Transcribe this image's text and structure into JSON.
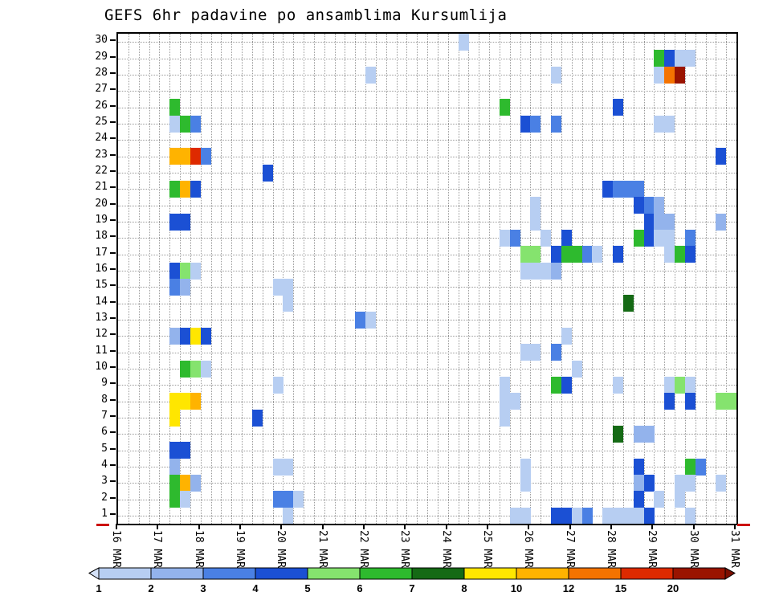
{
  "title": "GEFS 6hr padavine po ansamblima Kursumlija",
  "chart_data": {
    "type": "heatmap",
    "title": "GEFS 6hr padavine po ansamblima Kursumlija",
    "x_axis": {
      "tick_labels": [
        "16 MAR",
        "17 MAR",
        "18 MAR",
        "19 MAR",
        "20 MAR",
        "21 MAR",
        "22 MAR",
        "23 MAR",
        "24 MAR",
        "25 MAR",
        "26 MAR",
        "27 MAR",
        "28 MAR",
        "29 MAR",
        "30 MAR",
        "31 MAR"
      ],
      "steps_per_day": 4,
      "total_steps": 60
    },
    "y_axis": {
      "tick_labels": [
        "1",
        "2",
        "3",
        "4",
        "5",
        "6",
        "7",
        "8",
        "9",
        "10",
        "11",
        "12",
        "13",
        "14",
        "15",
        "16",
        "17",
        "18",
        "19",
        "20",
        "21",
        "22",
        "23",
        "24",
        "25",
        "26",
        "27",
        "28",
        "29",
        "30"
      ],
      "min": 1,
      "max": 30
    },
    "levels": [
      1,
      2,
      3,
      4,
      5,
      6,
      7,
      8,
      10,
      12,
      15,
      20
    ],
    "palette": {
      "1": "#b7cef2",
      "2": "#93b3ec",
      "3": "#4a80e4",
      "4": "#1b50d4",
      "5": "#85e36e",
      "6": "#2eba2e",
      "7": "#156a15",
      "8": "#ffe600",
      "10": "#ffb300",
      "12": "#f47300",
      "15": "#de2a00",
      "20": "#9a1400"
    },
    "colorbar": {
      "boundary_labels": [
        "1",
        "2",
        "3",
        "4",
        "5",
        "6",
        "7",
        "8",
        "10",
        "12",
        "15",
        "20"
      ],
      "segment_colors": [
        "#b7cef2",
        "#93b3ec",
        "#4a80e4",
        "#1b50d4",
        "#85e36e",
        "#2eba2e",
        "#156a15",
        "#ffe600",
        "#ffb300",
        "#f47300",
        "#de2a00",
        "#9a1400"
      ],
      "left_arrow_color": "#d4e1f8",
      "right_arrow_color": "#7c0e00"
    },
    "cells": [
      {
        "row": 30,
        "step": 33,
        "value": 1
      },
      {
        "row": 29,
        "step": 52,
        "value": 6
      },
      {
        "row": 29,
        "step": 53,
        "value": 4
      },
      {
        "row": 29,
        "step": 54,
        "value": 1
      },
      {
        "row": 29,
        "step": 55,
        "value": 1
      },
      {
        "row": 28,
        "step": 24,
        "value": 1
      },
      {
        "row": 28,
        "step": 42,
        "value": 1
      },
      {
        "row": 28,
        "step": 52,
        "value": 1
      },
      {
        "row": 28,
        "step": 53,
        "value": 12
      },
      {
        "row": 28,
        "step": 54,
        "value": 20
      },
      {
        "row": 26,
        "step": 5,
        "value": 6
      },
      {
        "row": 26,
        "step": 37,
        "value": 6
      },
      {
        "row": 26,
        "step": 48,
        "value": 4
      },
      {
        "row": 25,
        "step": 5,
        "value": 1
      },
      {
        "row": 25,
        "step": 6,
        "value": 6
      },
      {
        "row": 25,
        "step": 7,
        "value": 3
      },
      {
        "row": 25,
        "step": 39,
        "value": 4
      },
      {
        "row": 25,
        "step": 40,
        "value": 3
      },
      {
        "row": 25,
        "step": 42,
        "value": 3
      },
      {
        "row": 25,
        "step": 52,
        "value": 1
      },
      {
        "row": 25,
        "step": 53,
        "value": 1
      },
      {
        "row": 23,
        "step": 5,
        "value": 10
      },
      {
        "row": 23,
        "step": 6,
        "value": 10
      },
      {
        "row": 23,
        "step": 7,
        "value": 15
      },
      {
        "row": 23,
        "step": 8,
        "value": 3
      },
      {
        "row": 23,
        "step": 58,
        "value": 4
      },
      {
        "row": 22,
        "step": 14,
        "value": 4
      },
      {
        "row": 21,
        "step": 5,
        "value": 6
      },
      {
        "row": 21,
        "step": 6,
        "value": 10
      },
      {
        "row": 21,
        "step": 7,
        "value": 4
      },
      {
        "row": 21,
        "step": 47,
        "value": 4
      },
      {
        "row": 21,
        "step": 48,
        "value": 3
      },
      {
        "row": 21,
        "step": 49,
        "value": 3
      },
      {
        "row": 21,
        "step": 50,
        "value": 3
      },
      {
        "row": 20,
        "step": 40,
        "value": 1
      },
      {
        "row": 20,
        "step": 50,
        "value": 4
      },
      {
        "row": 20,
        "step": 51,
        "value": 3
      },
      {
        "row": 20,
        "step": 52,
        "value": 2
      },
      {
        "row": 19,
        "step": 5,
        "value": 4
      },
      {
        "row": 19,
        "step": 6,
        "value": 4
      },
      {
        "row": 19,
        "step": 40,
        "value": 1
      },
      {
        "row": 19,
        "step": 51,
        "value": 4
      },
      {
        "row": 19,
        "step": 52,
        "value": 2
      },
      {
        "row": 19,
        "step": 53,
        "value": 2
      },
      {
        "row": 19,
        "step": 58,
        "value": 2
      },
      {
        "row": 18,
        "step": 37,
        "value": 1
      },
      {
        "row": 18,
        "step": 38,
        "value": 3
      },
      {
        "row": 18,
        "step": 41,
        "value": 1
      },
      {
        "row": 18,
        "step": 43,
        "value": 4
      },
      {
        "row": 18,
        "step": 50,
        "value": 6
      },
      {
        "row": 18,
        "step": 51,
        "value": 4
      },
      {
        "row": 18,
        "step": 52,
        "value": 1
      },
      {
        "row": 18,
        "step": 53,
        "value": 1
      },
      {
        "row": 18,
        "step": 55,
        "value": 3
      },
      {
        "row": 17,
        "step": 39,
        "value": 5
      },
      {
        "row": 17,
        "step": 40,
        "value": 5
      },
      {
        "row": 17,
        "step": 42,
        "value": 4
      },
      {
        "row": 17,
        "step": 43,
        "value": 6
      },
      {
        "row": 17,
        "step": 44,
        "value": 6
      },
      {
        "row": 17,
        "step": 45,
        "value": 3
      },
      {
        "row": 17,
        "step": 46,
        "value": 1
      },
      {
        "row": 17,
        "step": 48,
        "value": 4
      },
      {
        "row": 17,
        "step": 53,
        "value": 1
      },
      {
        "row": 17,
        "step": 54,
        "value": 6
      },
      {
        "row": 17,
        "step": 55,
        "value": 4
      },
      {
        "row": 16,
        "step": 5,
        "value": 4
      },
      {
        "row": 16,
        "step": 6,
        "value": 5
      },
      {
        "row": 16,
        "step": 7,
        "value": 1
      },
      {
        "row": 16,
        "step": 39,
        "value": 1
      },
      {
        "row": 16,
        "step": 40,
        "value": 1
      },
      {
        "row": 16,
        "step": 41,
        "value": 1
      },
      {
        "row": 16,
        "step": 42,
        "value": 2
      },
      {
        "row": 15,
        "step": 5,
        "value": 3
      },
      {
        "row": 15,
        "step": 6,
        "value": 2
      },
      {
        "row": 15,
        "step": 15,
        "value": 1
      },
      {
        "row": 15,
        "step": 16,
        "value": 1
      },
      {
        "row": 14,
        "step": 16,
        "value": 1
      },
      {
        "row": 14,
        "step": 49,
        "value": 7
      },
      {
        "row": 13,
        "step": 23,
        "value": 3
      },
      {
        "row": 13,
        "step": 24,
        "value": 1
      },
      {
        "row": 12,
        "step": 5,
        "value": 2
      },
      {
        "row": 12,
        "step": 6,
        "value": 4
      },
      {
        "row": 12,
        "step": 7,
        "value": 8
      },
      {
        "row": 12,
        "step": 8,
        "value": 4
      },
      {
        "row": 12,
        "step": 43,
        "value": 1
      },
      {
        "row": 11,
        "step": 39,
        "value": 1
      },
      {
        "row": 11,
        "step": 40,
        "value": 1
      },
      {
        "row": 11,
        "step": 42,
        "value": 3
      },
      {
        "row": 10,
        "step": 6,
        "value": 6
      },
      {
        "row": 10,
        "step": 7,
        "value": 5
      },
      {
        "row": 10,
        "step": 8,
        "value": 1
      },
      {
        "row": 10,
        "step": 44,
        "value": 1
      },
      {
        "row": 9,
        "step": 15,
        "value": 1
      },
      {
        "row": 9,
        "step": 37,
        "value": 1
      },
      {
        "row": 9,
        "step": 42,
        "value": 6
      },
      {
        "row": 9,
        "step": 43,
        "value": 4
      },
      {
        "row": 9,
        "step": 48,
        "value": 1
      },
      {
        "row": 9,
        "step": 53,
        "value": 1
      },
      {
        "row": 9,
        "step": 54,
        "value": 5
      },
      {
        "row": 9,
        "step": 55,
        "value": 1
      },
      {
        "row": 8,
        "step": 5,
        "value": 8
      },
      {
        "row": 8,
        "step": 6,
        "value": 8
      },
      {
        "row": 8,
        "step": 7,
        "value": 10
      },
      {
        "row": 8,
        "step": 37,
        "value": 1
      },
      {
        "row": 8,
        "step": 38,
        "value": 1
      },
      {
        "row": 8,
        "step": 53,
        "value": 4
      },
      {
        "row": 8,
        "step": 55,
        "value": 4
      },
      {
        "row": 8,
        "step": 58,
        "value": 5
      },
      {
        "row": 8,
        "step": 59,
        "value": 5
      },
      {
        "row": 7,
        "step": 5,
        "value": 8
      },
      {
        "row": 7,
        "step": 13,
        "value": 4
      },
      {
        "row": 7,
        "step": 37,
        "value": 1
      },
      {
        "row": 6,
        "step": 48,
        "value": 7
      },
      {
        "row": 6,
        "step": 50,
        "value": 2
      },
      {
        "row": 6,
        "step": 51,
        "value": 2
      },
      {
        "row": 5,
        "step": 5,
        "value": 4
      },
      {
        "row": 5,
        "step": 6,
        "value": 4
      },
      {
        "row": 4,
        "step": 5,
        "value": 2
      },
      {
        "row": 4,
        "step": 15,
        "value": 1
      },
      {
        "row": 4,
        "step": 16,
        "value": 1
      },
      {
        "row": 4,
        "step": 39,
        "value": 1
      },
      {
        "row": 4,
        "step": 50,
        "value": 4
      },
      {
        "row": 4,
        "step": 55,
        "value": 6
      },
      {
        "row": 4,
        "step": 56,
        "value": 3
      },
      {
        "row": 3,
        "step": 5,
        "value": 6
      },
      {
        "row": 3,
        "step": 6,
        "value": 10
      },
      {
        "row": 3,
        "step": 7,
        "value": 2
      },
      {
        "row": 3,
        "step": 39,
        "value": 1
      },
      {
        "row": 3,
        "step": 50,
        "value": 2
      },
      {
        "row": 3,
        "step": 51,
        "value": 4
      },
      {
        "row": 3,
        "step": 54,
        "value": 1
      },
      {
        "row": 3,
        "step": 55,
        "value": 1
      },
      {
        "row": 3,
        "step": 58,
        "value": 1
      },
      {
        "row": 2,
        "step": 5,
        "value": 6
      },
      {
        "row": 2,
        "step": 6,
        "value": 1
      },
      {
        "row": 2,
        "step": 15,
        "value": 3
      },
      {
        "row": 2,
        "step": 16,
        "value": 3
      },
      {
        "row": 2,
        "step": 17,
        "value": 1
      },
      {
        "row": 2,
        "step": 50,
        "value": 4
      },
      {
        "row": 2,
        "step": 52,
        "value": 1
      },
      {
        "row": 2,
        "step": 54,
        "value": 1
      },
      {
        "row": 1,
        "step": 16,
        "value": 1
      },
      {
        "row": 1,
        "step": 38,
        "value": 1
      },
      {
        "row": 1,
        "step": 39,
        "value": 1
      },
      {
        "row": 1,
        "step": 42,
        "value": 4
      },
      {
        "row": 1,
        "step": 43,
        "value": 4
      },
      {
        "row": 1,
        "step": 44,
        "value": 1
      },
      {
        "row": 1,
        "step": 45,
        "value": 3
      },
      {
        "row": 1,
        "step": 47,
        "value": 1
      },
      {
        "row": 1,
        "step": 48,
        "value": 1
      },
      {
        "row": 1,
        "step": 49,
        "value": 1
      },
      {
        "row": 1,
        "step": 50,
        "value": 1
      },
      {
        "row": 1,
        "step": 51,
        "value": 4
      },
      {
        "row": 1,
        "step": 55,
        "value": 1
      }
    ]
  }
}
